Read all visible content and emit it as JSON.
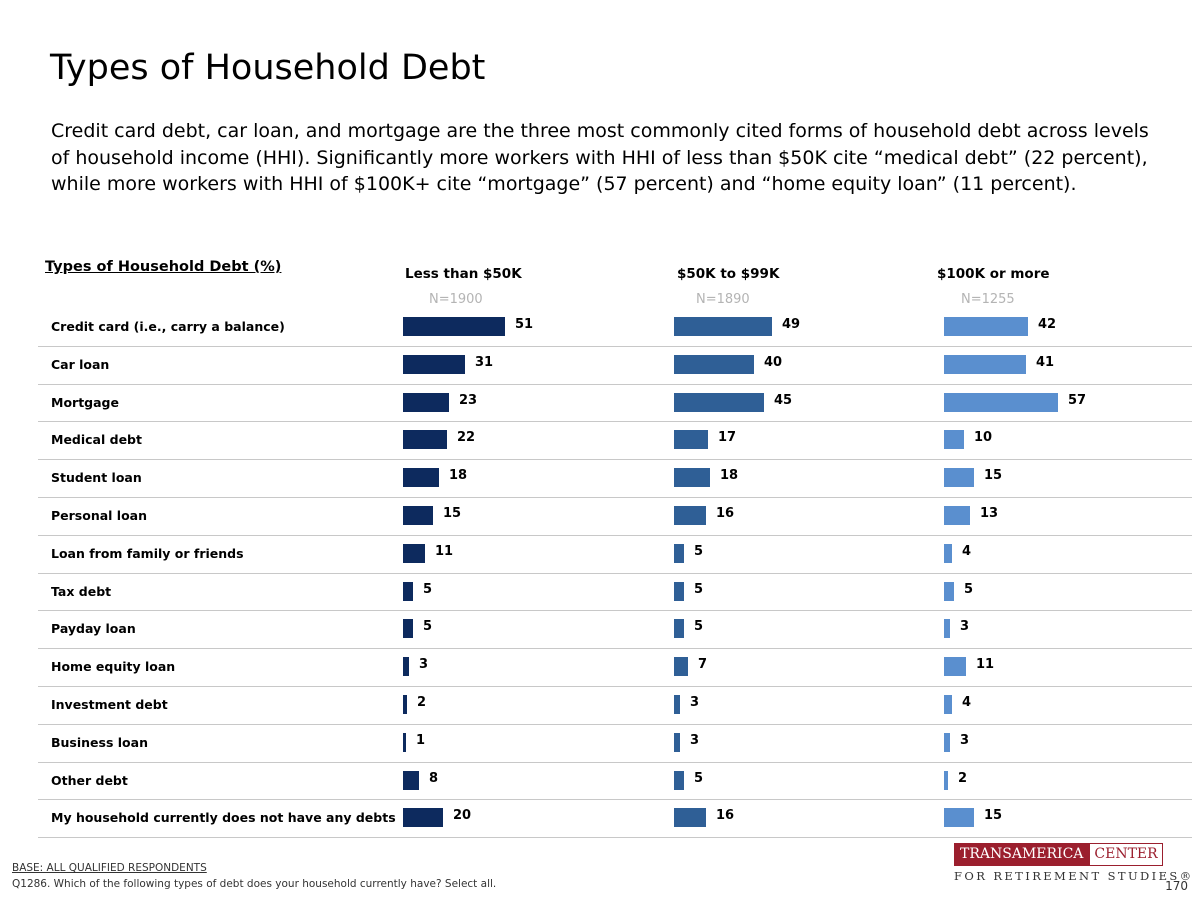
{
  "header": {
    "title": "Types of Household Debt",
    "subtitle": "Credit card debt, car loan, and mortgage are the three most commonly cited forms of household debt across levels of household income (HHI). Significantly more workers with HHI of less than $50K cite “medical debt” (22 percent), while more workers with HHI of $100K+ cite “mortgage” (57 percent) and “home equity loan” (11 percent)."
  },
  "chart_data": {
    "type": "bar",
    "title": "Types of Household Debt (%)",
    "categories": [
      "Credit card (i.e., carry a balance)",
      "Car loan",
      "Mortgage",
      "Medical debt",
      "Student loan",
      "Personal loan",
      "Loan from family or friends",
      "Tax debt",
      "Payday loan",
      "Home equity loan",
      "Investment debt",
      "Business loan",
      "Other debt",
      "My household currently does not have any debts"
    ],
    "series": [
      {
        "name": "Less than $50K",
        "n": "N=1900",
        "color": "#0d2a5e",
        "values": [
          51,
          31,
          23,
          22,
          18,
          15,
          11,
          5,
          5,
          3,
          2,
          1,
          8,
          20
        ]
      },
      {
        "name": "$50K to $99K",
        "n": "N=1890",
        "color": "#2f5f96",
        "values": [
          49,
          40,
          45,
          17,
          18,
          16,
          5,
          5,
          5,
          7,
          3,
          3,
          5,
          16
        ]
      },
      {
        "name": "$100K or more",
        "n": "N=1255",
        "color": "#5a8fcf",
        "values": [
          42,
          41,
          57,
          10,
          15,
          13,
          4,
          5,
          3,
          11,
          4,
          3,
          2,
          15
        ]
      }
    ]
  },
  "footer": {
    "base": "BASE: ALL QUALIFIED RESPONDENTS",
    "question": "Q1286. Which of the following types of debt does your household currently have? Select all.",
    "page_number": "170"
  },
  "logo": {
    "left_text": "TRANSAMERICA",
    "right_text": "CENTER",
    "bottom_text": "FOR RETIREMENT STUDIES®"
  }
}
